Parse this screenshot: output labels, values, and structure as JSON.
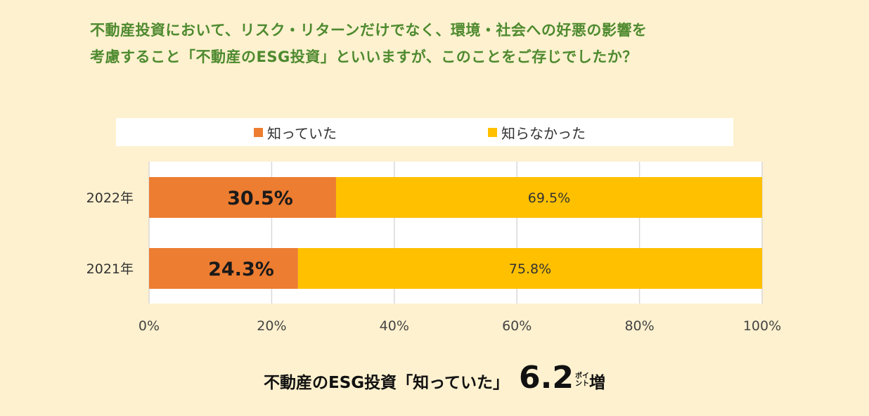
{
  "question": {
    "line1": "不動産投資において、リスク・リターンだけでなく、環境・社会への好悪の影響を",
    "line2": "考慮すること「不動産のESG投資」といいますが、このことをご存じでしたか？"
  },
  "colors": {
    "background": "#fef1cf",
    "question_text": "#4e8a2f",
    "knew": "#ed7d31",
    "did_not_know": "#ffc000",
    "grid": "#d9d9d9"
  },
  "chart_data": {
    "type": "bar",
    "orientation": "horizontal",
    "stacked": true,
    "categories": [
      "2022年",
      "2021年"
    ],
    "series": [
      {
        "name": "知っていた",
        "values": [
          30.5,
          24.3
        ],
        "labels": [
          "30.5%",
          "24.3%"
        ]
      },
      {
        "name": "知らなかった",
        "values": [
          69.5,
          75.8
        ],
        "labels": [
          "69.5%",
          "75.8%"
        ]
      }
    ],
    "xlim": [
      0,
      100
    ],
    "xticks": [
      "0%",
      "20%",
      "40%",
      "60%",
      "80%",
      "100%"
    ],
    "grid": true,
    "legend_position": "top"
  },
  "footer": {
    "text": "不動産のESG投資「知っていた」",
    "number": "6.2",
    "unit_top": "ポイ",
    "unit_bottom": "ント",
    "tail": "増"
  }
}
